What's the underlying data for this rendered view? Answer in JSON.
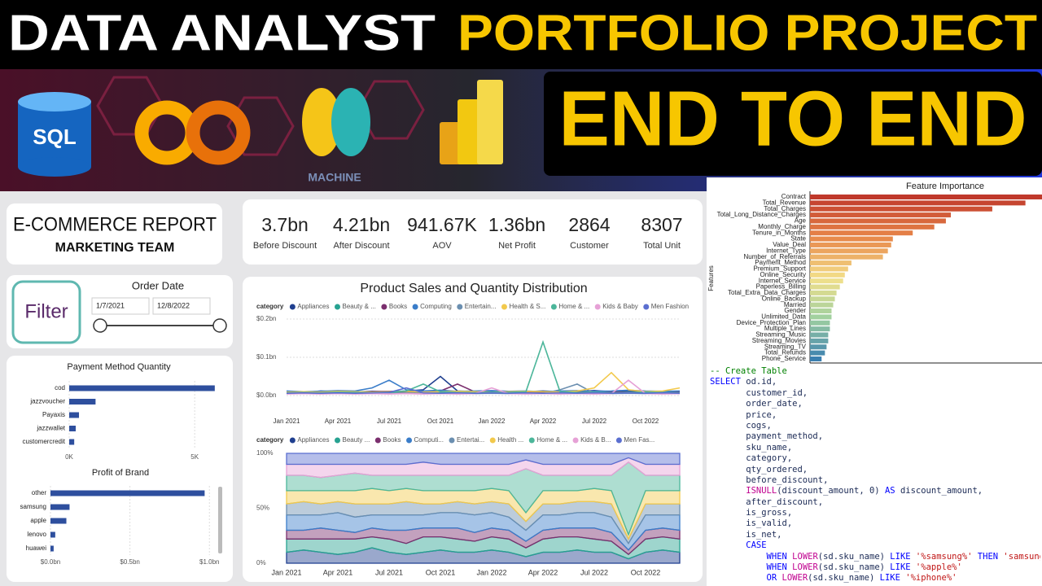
{
  "banner": {
    "headline": "DATA ANALYST",
    "headline_highlight": "PORTFOLIO PROJECT",
    "tagline": "END TO END",
    "sql_icon": "SQL",
    "ml_icon": "MACHINE"
  },
  "dashboard": {
    "title": "E-COMMERCE REPORT",
    "subtitle": "MARKETING TEAM",
    "kpis": [
      {
        "value": "3.7bn",
        "label": "Before Discount"
      },
      {
        "value": "4.21bn",
        "label": "After Discount"
      },
      {
        "value": "941.67K",
        "label": "AOV"
      },
      {
        "value": "1.36bn",
        "label": "Net Profit"
      },
      {
        "value": "2864",
        "label": "Customer"
      },
      {
        "value": "8307",
        "label": "Total Unit"
      }
    ],
    "filter": {
      "button": "Filter",
      "title": "Order Date",
      "start": "1/7/2021",
      "end": "12/8/2022"
    },
    "main_title": "Product Sales and Quantity Distribution"
  },
  "chart_data": [
    {
      "type": "bar",
      "orientation": "horizontal",
      "title": "Payment Method Quantity",
      "categories": [
        "cod",
        "jazzvoucher",
        "Payaxis",
        "jazzwallet",
        "customercredit"
      ],
      "values": [
        5800,
        1050,
        390,
        260,
        200
      ],
      "color": "#2e4f9e",
      "xlim": [
        0,
        6000
      ],
      "xticks": [
        {
          "value": 0,
          "label": "0K"
        },
        {
          "value": 5000,
          "label": "5K"
        }
      ],
      "grid": true
    },
    {
      "type": "bar",
      "orientation": "horizontal",
      "title": "Profit of Brand",
      "categories": [
        "other",
        "samsung",
        "apple",
        "lenovo",
        "huawei"
      ],
      "values": [
        0.97,
        0.12,
        0.1,
        0.03,
        0.02
      ],
      "color": "#2e4f9e",
      "xlim": [
        0,
        1.05
      ],
      "xticks": [
        {
          "value": 0,
          "label": "$0.0bn"
        },
        {
          "value": 0.5,
          "label": "$0.5bn"
        },
        {
          "value": 1,
          "label": "$1.0bn"
        }
      ],
      "grid": true
    },
    {
      "type": "line",
      "legend_title": "category",
      "categories": [
        "Jan 2021",
        null,
        null,
        "Apr 2021",
        null,
        null,
        "Jul 2021",
        null,
        null,
        "Oct 2021",
        null,
        null,
        "Jan 2022",
        null,
        null,
        "Apr 2022",
        null,
        null,
        "Jul 2022",
        null,
        null,
        "Oct 2022",
        null,
        null
      ],
      "series": [
        {
          "name": "Appliances",
          "color": "#1f3f8f",
          "values": [
            0.01,
            0.008,
            0.012,
            0.01,
            0.009,
            0.011,
            0.01,
            0.012,
            0.015,
            0.05,
            0.012,
            0.01,
            0.011,
            0.009,
            0.01,
            0.012,
            0.01,
            0.011,
            0.013,
            0.01,
            0.012,
            0.01,
            0.009,
            0.011
          ]
        },
        {
          "name": "Beauty & ...",
          "color": "#27a291",
          "values": [
            0.006,
            0.007,
            0.006,
            0.008,
            0.007,
            0.006,
            0.007,
            0.006,
            0.008,
            0.007,
            0.006,
            0.007,
            0.006,
            0.008,
            0.007,
            0.006,
            0.007,
            0.008,
            0.006,
            0.007,
            0.006,
            0.007,
            0.008,
            0.007
          ]
        },
        {
          "name": "Books",
          "color": "#7b2f6e",
          "values": [
            0.008,
            0.009,
            0.01,
            0.009,
            0.008,
            0.01,
            0.011,
            0.009,
            0.01,
            0.012,
            0.03,
            0.01,
            0.009,
            0.008,
            0.01,
            0.009,
            0.01,
            0.011,
            0.009,
            0.01,
            0.008,
            0.009,
            0.01,
            0.009
          ]
        },
        {
          "name": "Computing",
          "color": "#3a7dc9",
          "values": [
            0.012,
            0.01,
            0.011,
            0.013,
            0.012,
            0.02,
            0.04,
            0.015,
            0.012,
            0.014,
            0.011,
            0.012,
            0.013,
            0.011,
            0.012,
            0.01,
            0.012,
            0.013,
            0.011,
            0.012,
            0.014,
            0.012,
            0.011,
            0.012
          ]
        },
        {
          "name": "Entertain...",
          "color": "#6b8fb0",
          "values": [
            0.005,
            0.006,
            0.005,
            0.006,
            0.005,
            0.006,
            0.005,
            0.007,
            0.006,
            0.005,
            0.006,
            0.005,
            0.006,
            0.005,
            0.006,
            0.005,
            0.015,
            0.03,
            0.006,
            0.005,
            0.006,
            0.005,
            0.006,
            0.005
          ]
        },
        {
          "name": "Health & S...",
          "color": "#f2c94c",
          "values": [
            0.009,
            0.01,
            0.009,
            0.011,
            0.01,
            0.009,
            0.01,
            0.011,
            0.009,
            0.01,
            0.011,
            0.01,
            0.009,
            0.01,
            0.011,
            0.01,
            0.009,
            0.012,
            0.02,
            0.06,
            0.015,
            0.01,
            0.012,
            0.02
          ]
        },
        {
          "name": "Home & ...",
          "color": "#4cb69a",
          "values": [
            0.007,
            0.008,
            0.007,
            0.009,
            0.008,
            0.007,
            0.009,
            0.012,
            0.03,
            0.01,
            0.008,
            0.007,
            0.009,
            0.008,
            0.01,
            0.14,
            0.01,
            0.008,
            0.009,
            0.007,
            0.008,
            0.009,
            0.008,
            0.007
          ]
        },
        {
          "name": "Kids & Baby",
          "color": "#e6a1d6",
          "values": [
            0.004,
            0.005,
            0.004,
            0.005,
            0.004,
            0.005,
            0.004,
            0.005,
            0.004,
            0.005,
            0.004,
            0.005,
            0.02,
            0.005,
            0.004,
            0.005,
            0.004,
            0.005,
            0.004,
            0.005,
            0.04,
            0.005,
            0.004,
            0.005
          ]
        },
        {
          "name": "Men Fashion",
          "color": "#5b6fd0",
          "values": [
            0.006,
            0.007,
            0.006,
            0.007,
            0.006,
            0.007,
            0.008,
            0.02,
            0.007,
            0.006,
            0.007,
            0.006,
            0.007,
            0.006,
            0.007,
            0.006,
            0.007,
            0.006,
            0.007,
            0.006,
            0.007,
            0.006,
            0.007,
            0.006
          ]
        }
      ],
      "ylim": [
        0,
        0.2
      ],
      "yticks": [
        {
          "value": 0,
          "label": "$0.0bn"
        },
        {
          "value": 0.1,
          "label": "$0.1bn"
        },
        {
          "value": 0.2,
          "label": "$0.2bn"
        }
      ],
      "grid": true
    },
    {
      "type": "area",
      "stacked": "percent",
      "legend_title": "category",
      "categories": [
        "Jan 2021",
        null,
        null,
        "Apr 2021",
        null,
        null,
        "Jul 2021",
        null,
        null,
        "Oct 2021",
        null,
        null,
        "Jan 2022",
        null,
        null,
        "Apr 2022",
        null,
        null,
        "Jul 2022",
        null,
        null,
        "Oct 2022",
        null,
        null
      ],
      "series": [
        {
          "name": "Appliances",
          "color": "#1f3f8f",
          "values": [
            10,
            12,
            10,
            8,
            10,
            14,
            10,
            8,
            10,
            12,
            10,
            10,
            12,
            10,
            6,
            10,
            10,
            12,
            10,
            10,
            4,
            10,
            12,
            10
          ]
        },
        {
          "name": "Beauty ...",
          "color": "#27a291",
          "values": [
            12,
            10,
            12,
            14,
            12,
            10,
            12,
            10,
            14,
            12,
            12,
            10,
            12,
            12,
            8,
            12,
            14,
            12,
            12,
            10,
            4,
            12,
            12,
            12
          ]
        },
        {
          "name": "Books",
          "color": "#7b2f6e",
          "values": [
            8,
            8,
            10,
            8,
            6,
            8,
            8,
            12,
            8,
            8,
            10,
            8,
            8,
            8,
            6,
            8,
            8,
            8,
            10,
            8,
            4,
            8,
            8,
            8
          ]
        },
        {
          "name": "Computi...",
          "color": "#3a7dc9",
          "values": [
            14,
            14,
            12,
            16,
            14,
            12,
            14,
            14,
            12,
            14,
            14,
            16,
            14,
            12,
            10,
            14,
            12,
            14,
            14,
            14,
            6,
            14,
            12,
            14
          ]
        },
        {
          "name": "Entertai...",
          "color": "#6b8fb0",
          "values": [
            10,
            12,
            10,
            10,
            12,
            10,
            10,
            12,
            10,
            8,
            10,
            10,
            10,
            12,
            8,
            10,
            10,
            10,
            10,
            12,
            4,
            10,
            10,
            10
          ]
        },
        {
          "name": "Health ...",
          "color": "#f2c94c",
          "values": [
            12,
            10,
            12,
            10,
            12,
            14,
            12,
            12,
            12,
            12,
            10,
            12,
            12,
            12,
            8,
            12,
            12,
            10,
            12,
            12,
            4,
            12,
            12,
            12
          ]
        },
        {
          "name": "Home & ...",
          "color": "#4cb69a",
          "values": [
            14,
            14,
            12,
            14,
            16,
            12,
            14,
            12,
            14,
            14,
            14,
            14,
            12,
            14,
            40,
            14,
            14,
            14,
            12,
            14,
            66,
            14,
            14,
            14
          ]
        },
        {
          "name": "Kids & B...",
          "color": "#e6a1d6",
          "values": [
            10,
            10,
            12,
            10,
            8,
            10,
            10,
            10,
            12,
            10,
            10,
            10,
            10,
            10,
            8,
            10,
            10,
            10,
            10,
            10,
            4,
            10,
            10,
            10
          ]
        },
        {
          "name": "Men Fas...",
          "color": "#5b6fd0",
          "values": [
            10,
            10,
            10,
            10,
            10,
            10,
            10,
            10,
            8,
            10,
            10,
            10,
            10,
            10,
            6,
            10,
            10,
            10,
            10,
            10,
            4,
            10,
            10,
            10
          ]
        }
      ],
      "ylim": [
        0,
        100
      ],
      "yticks": [
        {
          "value": 0,
          "label": "0%"
        },
        {
          "value": 50,
          "label": "50%"
        },
        {
          "value": 100,
          "label": "100%"
        }
      ]
    },
    {
      "type": "bar",
      "orientation": "horizontal",
      "title": "Feature Importance",
      "ylabel": "Features",
      "categories": [
        "Contract",
        "Total_Revenue",
        "Total_Charges",
        "Total_Long_Distance_Charges",
        "Age",
        "Monthly_Charge",
        "Tenure_in_Months",
        "State",
        "Value_Deal",
        "Internet_Type",
        "Number_of_Referrals",
        "Payment_Method",
        "Premium_Support",
        "Online_Security",
        "Internet_Service",
        "Paperless_Billing",
        "Total_Extra_Data_Charges",
        "Online_Backup",
        "Married",
        "Gender",
        "Unlimited_Data",
        "Device_Protection_Plan",
        "Multiple_Lines",
        "Streaming_Music",
        "Streaming_Movies",
        "Streaming_TV",
        "Total_Refunds",
        "Phone_Service"
      ],
      "values": [
        0.14,
        0.13,
        0.11,
        0.085,
        0.082,
        0.075,
        0.062,
        0.05,
        0.049,
        0.047,
        0.044,
        0.025,
        0.023,
        0.021,
        0.02,
        0.018,
        0.016,
        0.015,
        0.014,
        0.013,
        0.013,
        0.012,
        0.012,
        0.011,
        0.011,
        0.01,
        0.009,
        0.007
      ],
      "colors": [
        "#c0392b",
        "#e8884a",
        "#f3e08a",
        "#9fd0a0",
        "#3a7fb0"
      ],
      "xlim": [
        0,
        0.14
      ]
    }
  ],
  "code": {
    "lines": [
      "-- Create Table",
      "SELECT od.id,",
      "       customer_id,",
      "       order_date,",
      "       price,",
      "       cogs,",
      "       payment_method,",
      "       sku_name,",
      "       category,",
      "       qty_ordered,",
      "       before_discount,",
      "       ISNULL(discount_amount, 0) AS discount_amount,",
      "       after_discount,",
      "       is_gross,",
      "       is_valid,",
      "       is_net,",
      "       CASE",
      "           WHEN LOWER(sd.sku_name) LIKE '%samsung%' THEN 'samsung'",
      "           WHEN LOWER(sd.sku_name) LIKE '%apple%'",
      "           OR LOWER(sd.sku_name) LIKE '%iphone%'"
    ]
  }
}
